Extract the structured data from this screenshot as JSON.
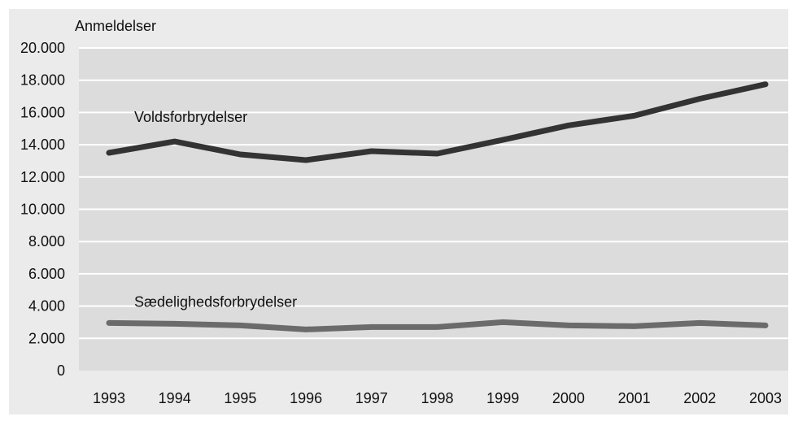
{
  "chart_data": {
    "type": "line",
    "title": "",
    "xlabel": "",
    "ylabel": "Anmeldelser",
    "categories": [
      "1993",
      "1994",
      "1995",
      "1996",
      "1997",
      "1998",
      "1999",
      "2000",
      "2001",
      "2002",
      "2003"
    ],
    "yticks": [
      {
        "value": 0,
        "label": "0"
      },
      {
        "value": 2000,
        "label": "2.000"
      },
      {
        "value": 4000,
        "label": "4.000"
      },
      {
        "value": 6000,
        "label": "6.000"
      },
      {
        "value": 8000,
        "label": "8.000"
      },
      {
        "value": 10000,
        "label": "10.000"
      },
      {
        "value": 12000,
        "label": "12.000"
      },
      {
        "value": 14000,
        "label": "14.000"
      },
      {
        "value": 16000,
        "label": "16.000"
      },
      {
        "value": 18000,
        "label": "18.000"
      },
      {
        "value": 20000,
        "label": "20.000"
      }
    ],
    "ylim": [
      0,
      20000
    ],
    "grid": true,
    "legend": "inline",
    "series": [
      {
        "name": "Voldsforbrydelser",
        "color": "#333333",
        "values": [
          13500,
          14200,
          13400,
          13050,
          13600,
          13450,
          14300,
          15200,
          15800,
          16850,
          17750
        ]
      },
      {
        "name": "Sædelighedsforbrydelser",
        "color": "#6b6b6b",
        "values": [
          2950,
          2900,
          2800,
          2550,
          2700,
          2700,
          3000,
          2800,
          2750,
          2950,
          2800
        ]
      }
    ],
    "colors": {
      "plot_background": "#dcdcdc",
      "outer_background": "#ebebeb",
      "gridline": "#ffffff"
    }
  }
}
